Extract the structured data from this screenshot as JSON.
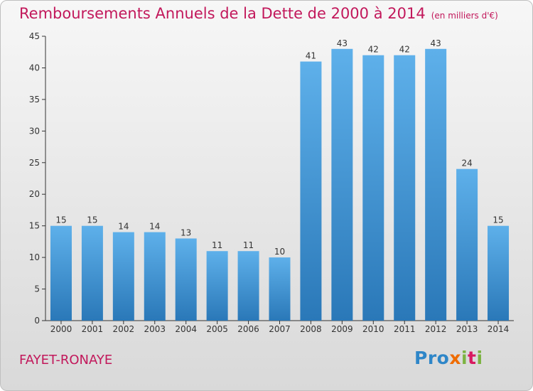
{
  "header": {
    "title": "Remboursements Annuels de la Dette de 2000 à 2014",
    "unit": "(en milliers d'€)"
  },
  "commune": "FAYET-RONAYE",
  "brand": "Proxiti",
  "colors": {
    "bar": "#4f9fdc",
    "bar_dark": "#2a78b8",
    "title": "#c2185b"
  },
  "chart_data": {
    "type": "bar",
    "title": "Remboursements Annuels de la Dette de 2000 à 2014",
    "subtitle": "(en milliers d'€)",
    "categories": [
      "2000",
      "2001",
      "2002",
      "2003",
      "2004",
      "2005",
      "2006",
      "2007",
      "2008",
      "2009",
      "2010",
      "2011",
      "2012",
      "2013",
      "2014"
    ],
    "values": [
      15,
      15,
      14,
      14,
      13,
      11,
      11,
      10,
      41,
      43,
      42,
      42,
      43,
      24,
      15
    ],
    "ylim": [
      0,
      45
    ],
    "yticks": [
      0,
      5,
      10,
      15,
      20,
      25,
      30,
      35,
      40,
      45
    ],
    "grid": false,
    "legend": "none"
  }
}
